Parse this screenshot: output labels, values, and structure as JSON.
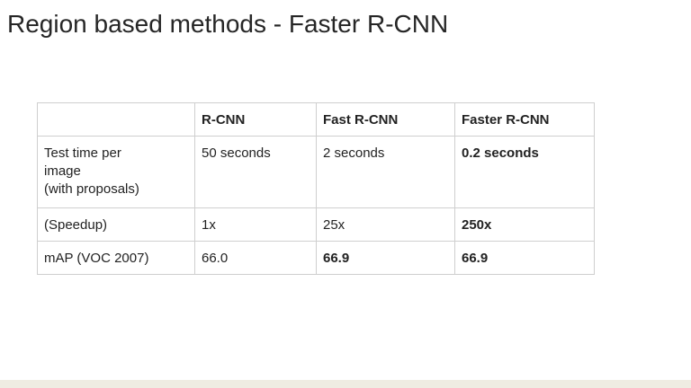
{
  "slide": {
    "title": "Region based methods - Faster R-CNN"
  },
  "table": {
    "headers": [
      "",
      "R-CNN",
      "Fast R-CNN",
      "Faster R-CNN"
    ],
    "rows": [
      {
        "label_lines": [
          "Test time per",
          "image",
          "(with proposals)"
        ],
        "cells": [
          "50 seconds",
          "2 seconds",
          "0.2 seconds"
        ]
      },
      {
        "label": "(Speedup)",
        "cells": [
          "1x",
          "25x",
          "250x"
        ]
      },
      {
        "label": "mAP (VOC 2007)",
        "cells": [
          "66.0",
          "66.9",
          "66.9"
        ]
      }
    ]
  }
}
